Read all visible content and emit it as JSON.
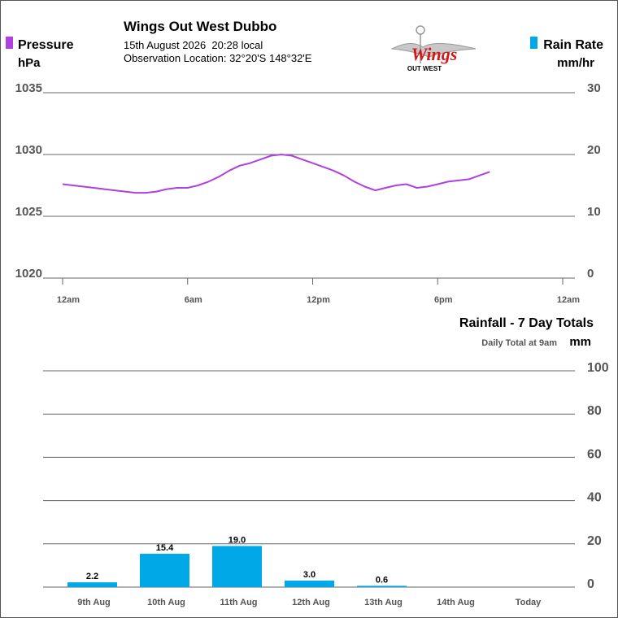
{
  "header": {
    "title": "Wings Out West Dubbo",
    "datetime": "15th August 2026  20:28 local",
    "location": "Observation Location: 32°20'S 148°32'E",
    "logo_text": "Wings",
    "logo_subtext": "OUT WEST"
  },
  "colors": {
    "pressure": "#b040e0",
    "rain": "#00a8e8",
    "axis_text": "#555555",
    "grid": "#555555"
  },
  "chart_data": [
    {
      "type": "line",
      "legend_left": {
        "label": "Pressure",
        "unit": "hPa"
      },
      "legend_right": {
        "label": "Rain Rate",
        "unit": "mm/hr"
      },
      "x_ticks": [
        "12am",
        "6am",
        "12pm",
        "6pm",
        "12am"
      ],
      "x_tick_hours": [
        0,
        6,
        12,
        18,
        24
      ],
      "y_left": {
        "ticks": [
          1020,
          1025,
          1030,
          1035
        ],
        "range": [
          1020,
          1035
        ]
      },
      "y_right": {
        "ticks": [
          "0",
          "10",
          "20",
          "30"
        ],
        "range": [
          0,
          30
        ]
      },
      "series": [
        {
          "name": "Pressure",
          "x": [
            0,
            0.5,
            1,
            1.5,
            2,
            2.5,
            3,
            3.5,
            4,
            4.5,
            5,
            5.5,
            6,
            6.5,
            7,
            7.5,
            8,
            8.5,
            9,
            9.5,
            10,
            10.5,
            11,
            11.5,
            12,
            12.5,
            13,
            13.5,
            14,
            14.5,
            15,
            15.5,
            16,
            16.5,
            17,
            17.5,
            18,
            18.5,
            19,
            19.5,
            20,
            20.5
          ],
          "y": [
            1027.6,
            1027.5,
            1027.4,
            1027.3,
            1027.2,
            1027.1,
            1027.0,
            1026.9,
            1026.9,
            1027.0,
            1027.2,
            1027.3,
            1027.3,
            1027.5,
            1027.8,
            1028.2,
            1028.7,
            1029.1,
            1029.3,
            1029.6,
            1029.9,
            1030.0,
            1029.9,
            1029.6,
            1029.3,
            1029.0,
            1028.7,
            1028.3,
            1027.8,
            1027.4,
            1027.1,
            1027.3,
            1027.5,
            1027.6,
            1027.3,
            1027.4,
            1027.6,
            1027.8,
            1027.9,
            1028.0,
            1028.3,
            1028.6
          ]
        }
      ]
    },
    {
      "type": "bar",
      "title": "Rainfall - 7 Day Totals",
      "subtitle": "Daily Total at 9am",
      "unit": "mm",
      "categories": [
        "9th Aug",
        "10th Aug",
        "11th Aug",
        "12th Aug",
        "13th Aug",
        "14th Aug",
        "Today"
      ],
      "values": [
        2.2,
        15.4,
        19.0,
        3.0,
        0.6,
        null,
        null
      ],
      "value_labels": [
        "2.2",
        "15.4",
        "19.0",
        "3.0",
        "0.6",
        "",
        ""
      ],
      "y_ticks": [
        "0",
        "20",
        "40",
        "60",
        "80",
        "100"
      ],
      "ylim": [
        0,
        100
      ]
    }
  ]
}
